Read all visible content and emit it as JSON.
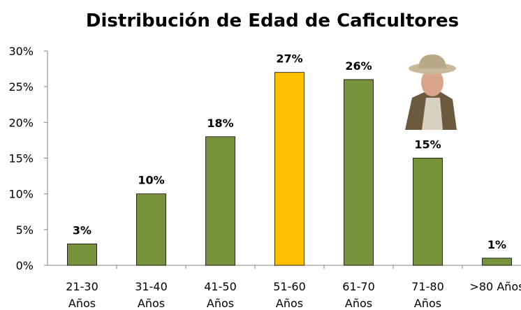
{
  "chart_data": {
    "type": "bar",
    "title": "Distribución  de Edad de Caficultores",
    "categories": [
      "21-30\nAños",
      "31-40\nAños",
      "41-50\nAños",
      "51-60\nAños",
      "61-70\nAños",
      "71-80\nAños",
      ">80 Años"
    ],
    "values": [
      3,
      10,
      18,
      27,
      26,
      15,
      1
    ],
    "value_labels": [
      "3%",
      "10%",
      "18%",
      "27%",
      "26%",
      "15%",
      "1%"
    ],
    "colors": [
      "#77933c",
      "#77933c",
      "#77933c",
      "#ffc000",
      "#77933c",
      "#77933c",
      "#77933c"
    ],
    "ylim": [
      0,
      30
    ],
    "yticks": [
      {
        "value": 0,
        "label": "0%"
      },
      {
        "value": 5,
        "label": "5%"
      },
      {
        "value": 10,
        "label": "10%"
      },
      {
        "value": 15,
        "label": "15%"
      },
      {
        "value": 20,
        "label": "20%"
      },
      {
        "value": 25,
        "label": "25%"
      },
      {
        "value": 30,
        "label": "30%"
      }
    ],
    "grid": false
  }
}
